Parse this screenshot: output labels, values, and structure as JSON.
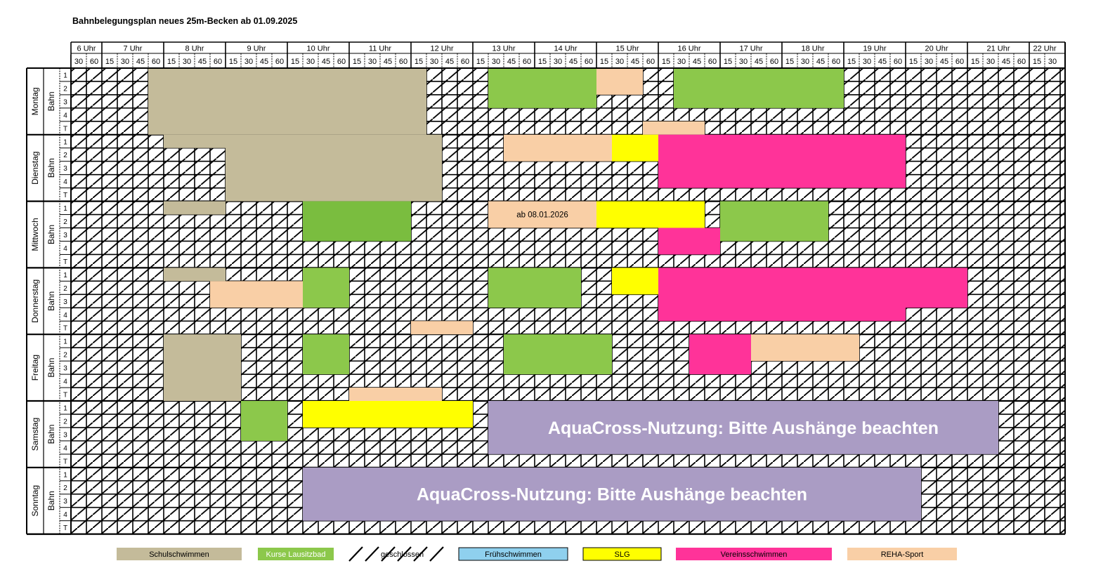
{
  "title": "Bahnbelegungsplan neues 25m-Becken ab 01.09.2025",
  "colors": {
    "schulschwimmen": "#c4bb9a",
    "kurse": "#8cc84b",
    "kurse_dark": "#7abd3f",
    "fruehschwimmen": "#8fd0ee",
    "slg": "#ffff00",
    "verein": "#ff3399",
    "reha": "#f9cfa6",
    "aquacross": "#aa9cc4"
  },
  "hours": [
    "6 Uhr",
    "7 Uhr",
    "8 Uhr",
    "9 Uhr",
    "10 Uhr",
    "11 Uhr",
    "12 Uhr",
    "13 Uhr",
    "14 Uhr",
    "15 Uhr",
    "16 Uhr",
    "17 Uhr",
    "18 Uhr",
    "19 Uhr",
    "20 Uhr",
    "21 Uhr",
    "22 Uhr"
  ],
  "first_hour_quarters": [
    "30",
    "60"
  ],
  "hour_quarters": [
    "15",
    "30",
    "45",
    "60"
  ],
  "last_hour_quarters": [
    "15",
    "30"
  ],
  "bahn_label": "Bahn",
  "lanes": [
    "1",
    "2",
    "3",
    "4",
    "T"
  ],
  "days": [
    {
      "name": "Montag",
      "blocks": [
        {
          "type": "schulschwimmen",
          "start": 7.75,
          "end": 12.25,
          "lanes": [
            1,
            5
          ]
        },
        {
          "type": "kurse",
          "start": 13.25,
          "end": 15.0,
          "lanes": [
            1,
            3
          ]
        },
        {
          "type": "reha",
          "start": 15.0,
          "end": 15.75,
          "lanes": [
            1,
            2
          ]
        },
        {
          "type": "kurse",
          "start": 16.25,
          "end": 19.0,
          "lanes": [
            1,
            3
          ]
        },
        {
          "type": "reha",
          "start": 15.75,
          "end": 16.75,
          "lanes": [
            5,
            5
          ]
        }
      ]
    },
    {
      "name": "Dienstag",
      "blocks": [
        {
          "type": "schulschwimmen",
          "start": 8.0,
          "end": 9.0,
          "lanes": [
            1,
            1
          ]
        },
        {
          "type": "schulschwimmen",
          "start": 9.0,
          "end": 12.5,
          "lanes": [
            1,
            5
          ]
        },
        {
          "type": "reha",
          "start": 13.5,
          "end": 15.25,
          "lanes": [
            1,
            2
          ]
        },
        {
          "type": "slg",
          "start": 15.25,
          "end": 16.0,
          "lanes": [
            1,
            2
          ]
        },
        {
          "type": "verein",
          "start": 16.0,
          "end": 20.0,
          "lanes": [
            1,
            4
          ]
        }
      ]
    },
    {
      "name": "Mittwoch",
      "blocks": [
        {
          "type": "schulschwimmen",
          "start": 8.0,
          "end": 9.0,
          "lanes": [
            1,
            1
          ]
        },
        {
          "type": "kurse_dark",
          "start": 10.25,
          "end": 12.0,
          "lanes": [
            1,
            3
          ]
        },
        {
          "type": "reha",
          "start": 13.25,
          "end": 15.0,
          "lanes": [
            1,
            2
          ],
          "label": "ab 08.01.2026"
        },
        {
          "type": "slg",
          "start": 15.0,
          "end": 16.75,
          "lanes": [
            1,
            2
          ]
        },
        {
          "type": "kurse",
          "start": 17.0,
          "end": 18.75,
          "lanes": [
            1,
            3
          ]
        },
        {
          "type": "verein",
          "start": 16.0,
          "end": 17.0,
          "lanes": [
            3,
            4
          ]
        }
      ]
    },
    {
      "name": "Donnerstag",
      "blocks": [
        {
          "type": "schulschwimmen",
          "start": 8.0,
          "end": 9.0,
          "lanes": [
            1,
            1
          ]
        },
        {
          "type": "reha",
          "start": 8.75,
          "end": 10.5,
          "lanes": [
            2,
            3
          ]
        },
        {
          "type": "kurse",
          "start": 10.25,
          "end": 11.0,
          "lanes": [
            1,
            3
          ]
        },
        {
          "type": "kurse",
          "start": 13.25,
          "end": 14.75,
          "lanes": [
            1,
            3
          ]
        },
        {
          "type": "slg",
          "start": 15.25,
          "end": 16.0,
          "lanes": [
            1,
            2
          ]
        },
        {
          "type": "verein",
          "start": 16.0,
          "end": 20.0,
          "lanes": [
            1,
            4
          ]
        },
        {
          "type": "verein",
          "start": 20.0,
          "end": 21.0,
          "lanes": [
            1,
            3
          ]
        },
        {
          "type": "reha",
          "start": 12.0,
          "end": 13.0,
          "lanes": [
            5,
            5
          ]
        }
      ]
    },
    {
      "name": "Freitag",
      "blocks": [
        {
          "type": "schulschwimmen",
          "start": 8.0,
          "end": 9.25,
          "lanes": [
            1,
            5
          ]
        },
        {
          "type": "kurse",
          "start": 10.25,
          "end": 11.0,
          "lanes": [
            1,
            3
          ]
        },
        {
          "type": "kurse",
          "start": 13.5,
          "end": 15.25,
          "lanes": [
            1,
            3
          ]
        },
        {
          "type": "verein",
          "start": 16.5,
          "end": 17.5,
          "lanes": [
            1,
            3
          ]
        },
        {
          "type": "reha",
          "start": 17.5,
          "end": 19.25,
          "lanes": [
            1,
            2
          ]
        },
        {
          "type": "reha",
          "start": 11.0,
          "end": 12.5,
          "lanes": [
            5,
            5
          ]
        }
      ]
    },
    {
      "name": "Samstag",
      "blocks": [
        {
          "type": "kurse",
          "start": 9.25,
          "end": 10.0,
          "lanes": [
            1,
            3
          ]
        },
        {
          "type": "slg",
          "start": 10.25,
          "end": 13.0,
          "lanes": [
            1,
            2
          ]
        },
        {
          "type": "aquacross",
          "start": 13.25,
          "end": 21.5,
          "lanes": [
            1,
            4
          ],
          "label": "AquaCross-Nutzung:     Bitte Aushänge beachten"
        }
      ]
    },
    {
      "name": "Sonntag",
      "blocks": [
        {
          "type": "aquacross",
          "start": 10.25,
          "end": 20.25,
          "lanes": [
            1,
            4
          ],
          "label": "AquaCross-Nutzung:     Bitte Aushänge beachten"
        }
      ]
    }
  ],
  "legend": [
    {
      "label": "Schulschwimmen",
      "type": "schulschwimmen"
    },
    {
      "label": "Kurse Lausitzbad",
      "type": "kurse"
    },
    {
      "label": "geschlossen",
      "type": "geschlossen"
    },
    {
      "label": "Frühschwimmen",
      "type": "fruehschwimmen"
    },
    {
      "label": "SLG",
      "type": "slg"
    },
    {
      "label": "Vereinsschwimmen",
      "type": "verein"
    },
    {
      "label": "REHA-Sport",
      "type": "reha"
    }
  ]
}
